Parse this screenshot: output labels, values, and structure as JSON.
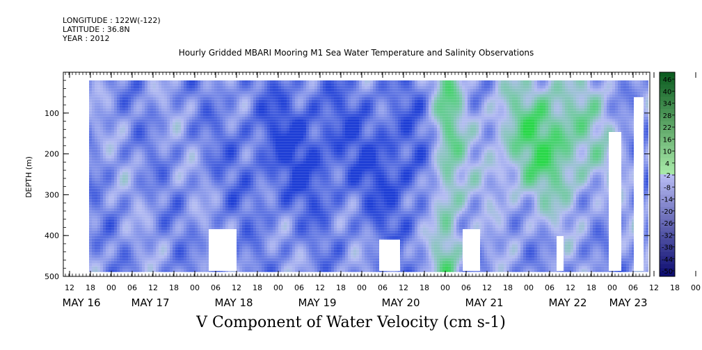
{
  "header": {
    "longitude": "LONGITUDE : 122W(-122)",
    "latitude": "LATITUDE : 36.8N",
    "year": "YEAR : 2012"
  },
  "chart_data": {
    "type": "heatmap",
    "title": "Hourly Gridded MBARI Mooring M1 Sea Water Temperature and Salinity Observations",
    "ylabel": "DEPTH (m)",
    "xlabel": "V Component of Water Velocity (cm s-1)",
    "y_axis": {
      "range": [
        0,
        500
      ],
      "inverted": true,
      "ticks": [
        100,
        200,
        300,
        400,
        500
      ]
    },
    "x_axis": {
      "unit": "hours",
      "hour_tick_labels": [
        "12",
        "18",
        "00",
        "06",
        "12",
        "18",
        "00",
        "06",
        "12",
        "18",
        "00",
        "06",
        "12",
        "18",
        "00",
        "06",
        "12",
        "18",
        "00",
        "06",
        "12",
        "18",
        "00",
        "06",
        "12",
        "18",
        "00",
        "06",
        "12",
        "18",
        "00",
        "06"
      ],
      "date_labels": [
        "MAY 16",
        "MAY 17",
        "MAY 18",
        "MAY 19",
        "MAY 20",
        "MAY 21",
        "MAY 22",
        "MAY 23"
      ]
    },
    "colorbar": {
      "labels": [
        "46",
        "40",
        "34",
        "28",
        "22",
        "16",
        "10",
        "4",
        "-2",
        "-8",
        "-14",
        "-20",
        "-26",
        "-32",
        "-38",
        "-44",
        "-50"
      ],
      "range": [
        -50,
        50
      ]
    },
    "colors": {
      "negative": "#1f3fd6",
      "neutral": "#b4bcf2",
      "positive": "#2ad84a",
      "missing": "#ffffff"
    }
  }
}
